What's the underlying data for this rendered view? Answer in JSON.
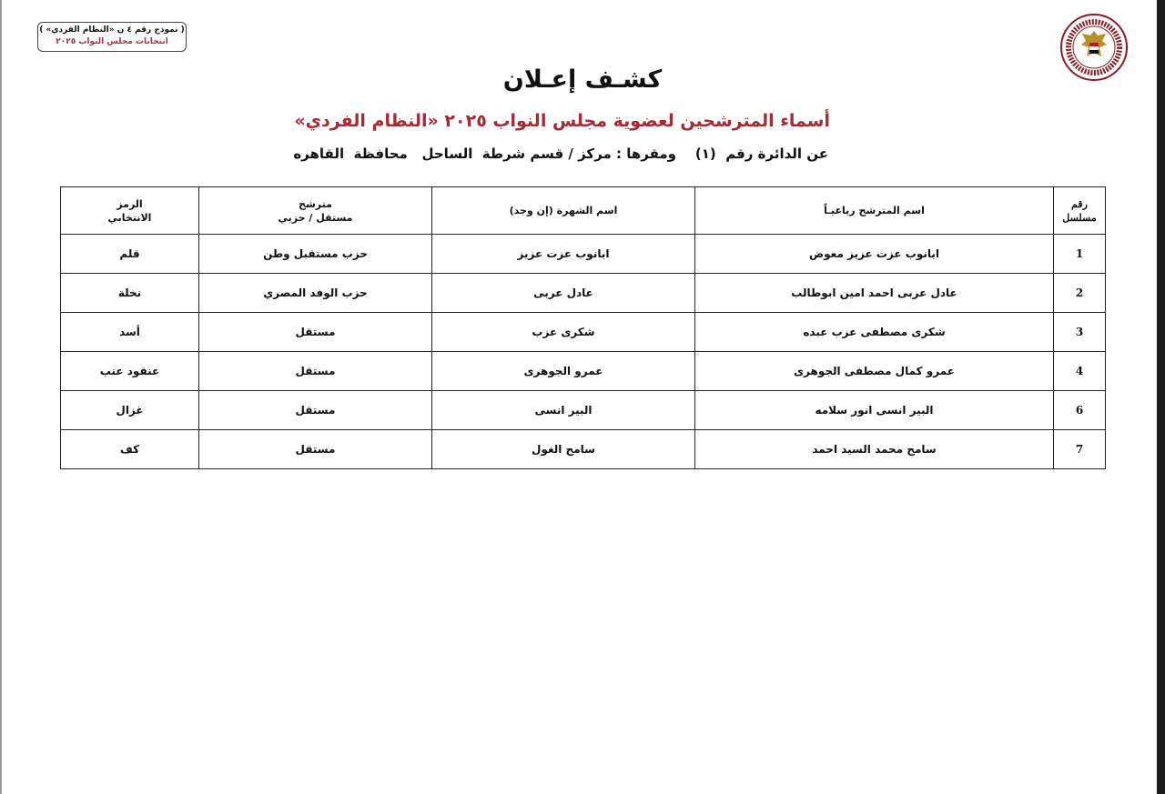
{
  "form_box": {
    "line1": "( نموذج رقم ٤ ن «النظام الفردي» )",
    "line2": "انتخابات مجلس النواب ٢٠٢٥"
  },
  "logo": {
    "icon": "egypt-eagle-emblem-icon",
    "text": "National Elections Authority - Egypt"
  },
  "title": "كشـف إعـلان",
  "subtitle": "أسماء المترشحين لعضوية مجلس النواب ٢٠٢٥ «النظام الفردي»",
  "district": "عن الدائرة رقم  (١)    ومقرها : مركز / قسم شرطة  الساحل   محافظة  القاهره",
  "colors": {
    "subtitle": "#a52a33",
    "text": "#111111"
  },
  "table": {
    "headers": {
      "num": [
        "رقم",
        "مسلسل"
      ],
      "name": "اسم المترشح رباعيـاً",
      "nick": "اسم الشهرة (إن وجد)",
      "type": [
        "مترشح",
        "مستقل / حزبي"
      ],
      "symbol": [
        "الرمز",
        "الانتخابي"
      ]
    },
    "rows": [
      {
        "num": "1",
        "name": "ابانوب عزت عزيز معوض",
        "nick": "ابانوب عزت عزيز",
        "type": "حزب مستقبل وطن",
        "symbol": "قلم"
      },
      {
        "num": "2",
        "name": "عادل عربى احمد امين ابوطالب",
        "nick": "عادل عربى",
        "type": "حزب الوفد المصري",
        "symbol": "نخلة"
      },
      {
        "num": "3",
        "name": "شكرى مصطفى عزب عبده",
        "nick": "شكرى عزب",
        "type": "مستقل",
        "symbol": "أسد"
      },
      {
        "num": "4",
        "name": "عمرو كمال مصطفى الجوهرى",
        "nick": "عمرو الجوهرى",
        "type": "مستقل",
        "symbol": "عنقود عنب"
      },
      {
        "num": "6",
        "name": "البير انسى انور سلامه",
        "nick": "البير انسى",
        "type": "مستقل",
        "symbol": "غزال"
      },
      {
        "num": "7",
        "name": "سامح محمد السيد احمد",
        "nick": "سامح الغول",
        "type": "مستقل",
        "symbol": "كف"
      }
    ]
  }
}
